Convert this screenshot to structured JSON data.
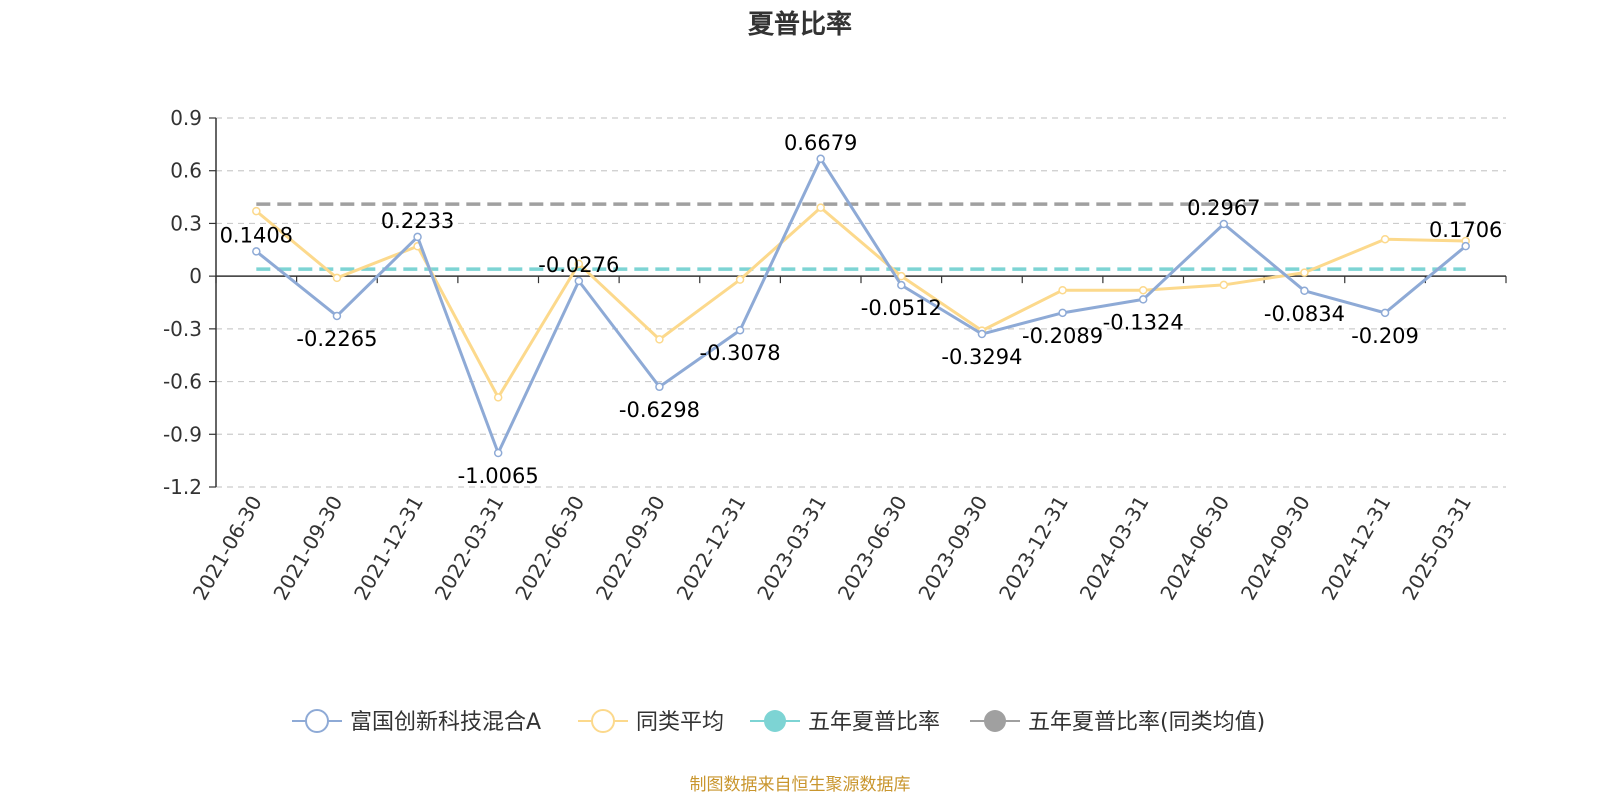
{
  "chart_data": {
    "type": "line",
    "title": "夏普比率",
    "categories": [
      "2021-06-30",
      "2021-09-30",
      "2021-12-31",
      "2022-03-31",
      "2022-06-30",
      "2022-09-30",
      "2022-12-31",
      "2023-03-31",
      "2023-06-30",
      "2023-09-30",
      "2023-12-31",
      "2024-03-31",
      "2024-06-30",
      "2024-09-30",
      "2024-12-31",
      "2025-03-31"
    ],
    "ylim": [
      -1.2,
      0.9
    ],
    "yticks": [
      "0.9",
      "0.6",
      "0.3",
      "0",
      "-0.3",
      "-0.6",
      "-0.9",
      "-1.2"
    ],
    "grid": true,
    "legend_position": "bottom",
    "series": [
      {
        "name": "富国创新科技混合A",
        "color": "#8eaad6",
        "values": [
          0.1408,
          -0.2265,
          0.2233,
          -1.0065,
          -0.0276,
          -0.6298,
          -0.3078,
          0.6679,
          -0.0512,
          -0.3294,
          -0.2089,
          -0.1324,
          0.2967,
          -0.0834,
          -0.209,
          0.1706
        ],
        "labels": [
          "0.1408",
          "-0.2265",
          "0.2233",
          "-1.0065",
          "-0.0276",
          "-0.6298",
          "-0.3078",
          "0.6679",
          "-0.0512",
          "-0.3294",
          "-0.2089",
          "-0.1324",
          "0.2967",
          "-0.0834",
          "-0.209",
          "0.1706"
        ]
      },
      {
        "name": "同类平均",
        "color": "#fcd98c",
        "values": [
          0.37,
          -0.01,
          0.17,
          -0.69,
          0.07,
          -0.36,
          -0.02,
          0.39,
          0.0,
          -0.31,
          -0.08,
          -0.08,
          -0.05,
          0.02,
          0.21,
          0.2
        ]
      },
      {
        "name": "五年夏普比率",
        "color": "#7dd4d4",
        "dashed": true,
        "value": 0.04
      },
      {
        "name": "五年夏普比率(同类均值)",
        "color": "#a0a0a0",
        "dashed": true,
        "value": 0.41
      }
    ]
  },
  "footer": {
    "source": "制图数据来自恒生聚源数据库",
    "source_color": "#c9962e"
  }
}
